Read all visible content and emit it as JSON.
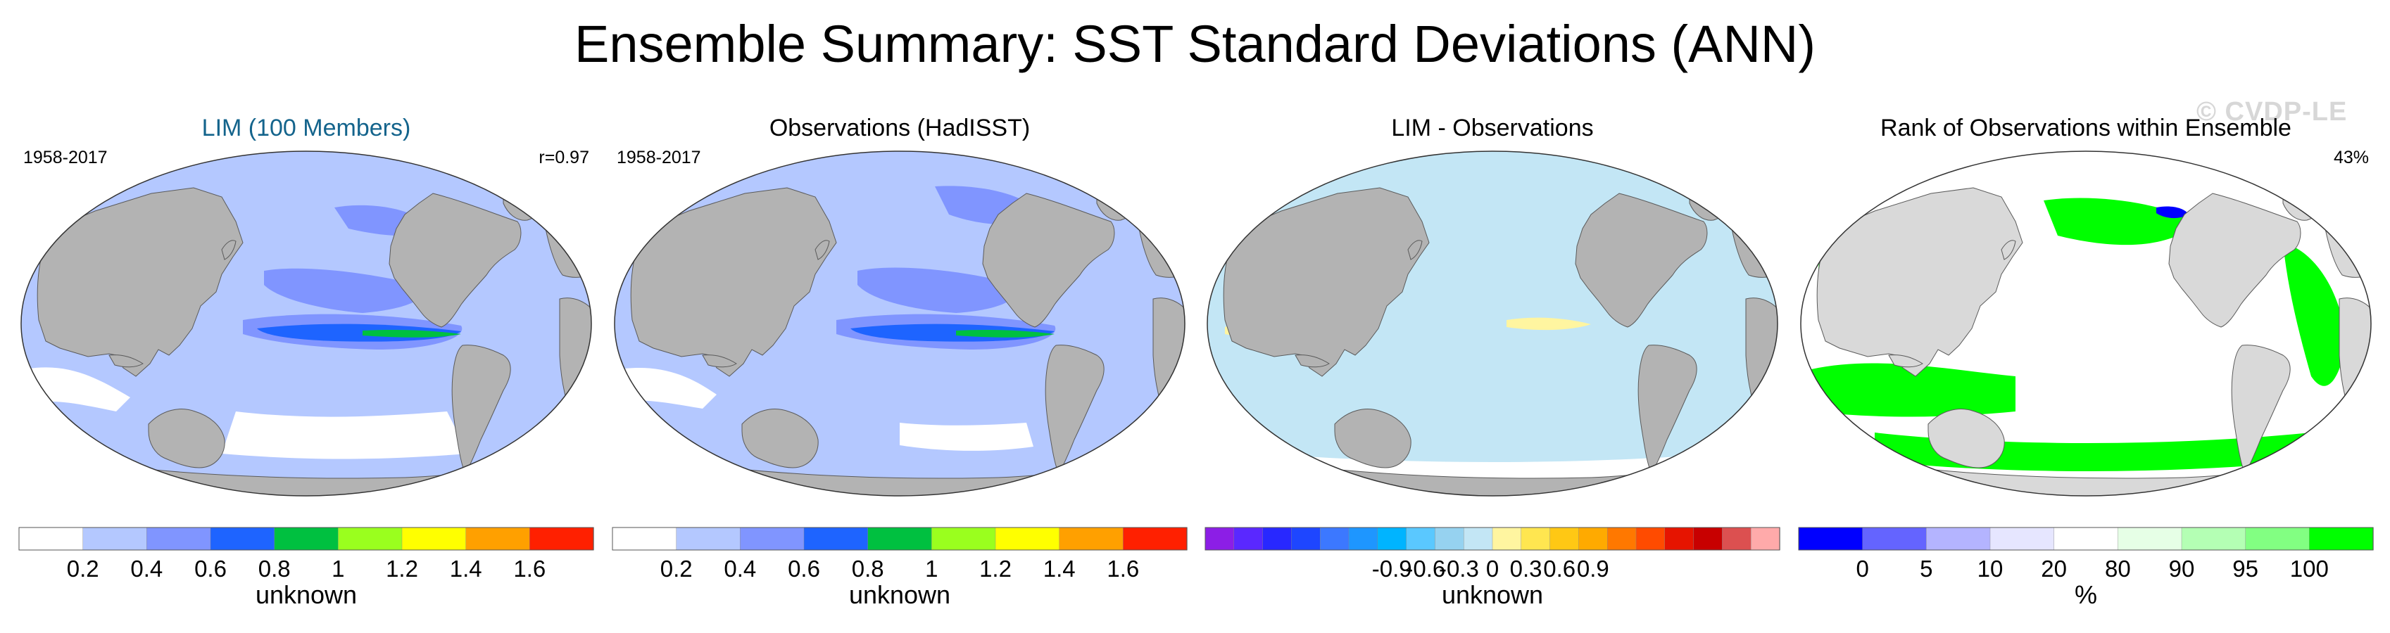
{
  "title": "Ensemble Summary: SST Standard Deviations (ANN)",
  "watermark": "© CVDP-LE",
  "colors": {
    "land": "#b3b3b3",
    "coast": "#5a5a5a",
    "ice": "#ffffff",
    "lim_title": "#14648c",
    "light_land": "#d9d9d9"
  },
  "panels": [
    {
      "title": "LIM (100 Members)",
      "left_label": "1958-2017",
      "right_label": "r=0.97",
      "colorbar": {
        "label": "unknown",
        "colors": [
          "#ffffff",
          "#b4c8ff",
          "#8095ff",
          "#1e64ff",
          "#00c040",
          "#9aff1e",
          "#ffff00",
          "#ffa000",
          "#ff2000"
        ],
        "ticks": [
          "0.2",
          "0.4",
          "0.6",
          "0.8",
          "1",
          "1.2",
          "1.4",
          "1.6"
        ]
      }
    },
    {
      "title": "Observations (HadISST)",
      "left_label": "1958-2017",
      "right_label": "",
      "colorbar": {
        "label": "unknown",
        "colors": [
          "#ffffff",
          "#b4c8ff",
          "#8095ff",
          "#1e64ff",
          "#00c040",
          "#9aff1e",
          "#ffff00",
          "#ffa000",
          "#ff2000"
        ],
        "ticks": [
          "0.2",
          "0.4",
          "0.6",
          "0.8",
          "1",
          "1.2",
          "1.4",
          "1.6"
        ]
      }
    },
    {
      "title": "LIM - Observations",
      "left_label": "",
      "right_label": "",
      "colorbar": {
        "label": "unknown",
        "colors": [
          "#8c1ee6",
          "#5a28ff",
          "#2828ff",
          "#1e46ff",
          "#3c78ff",
          "#1e96ff",
          "#00b4ff",
          "#5ac8ff",
          "#96d2f0",
          "#c3e6f5",
          "#fff5a0",
          "#ffe650",
          "#ffc814",
          "#ffaa00",
          "#ff7800",
          "#ff4b00",
          "#e61400",
          "#c80000",
          "#dc5050",
          "#ffaaaa"
        ],
        "ticks": [
          "-0.9",
          "-0.6",
          "-0.3",
          "0",
          "0.3",
          "0.6",
          "0.9"
        ]
      }
    },
    {
      "title": "Rank of Observations within Ensemble",
      "left_label": "",
      "right_label": "43%",
      "colorbar": {
        "label": "%",
        "colors": [
          "#0000ff",
          "#6464ff",
          "#b4b4ff",
          "#e6e6ff",
          "#ffffff",
          "#e6ffe6",
          "#b4ffb4",
          "#82ff82",
          "#00ff00"
        ],
        "ticks": [
          "0",
          "5",
          "10",
          "20",
          "80",
          "90",
          "95",
          "100"
        ]
      }
    }
  ]
}
